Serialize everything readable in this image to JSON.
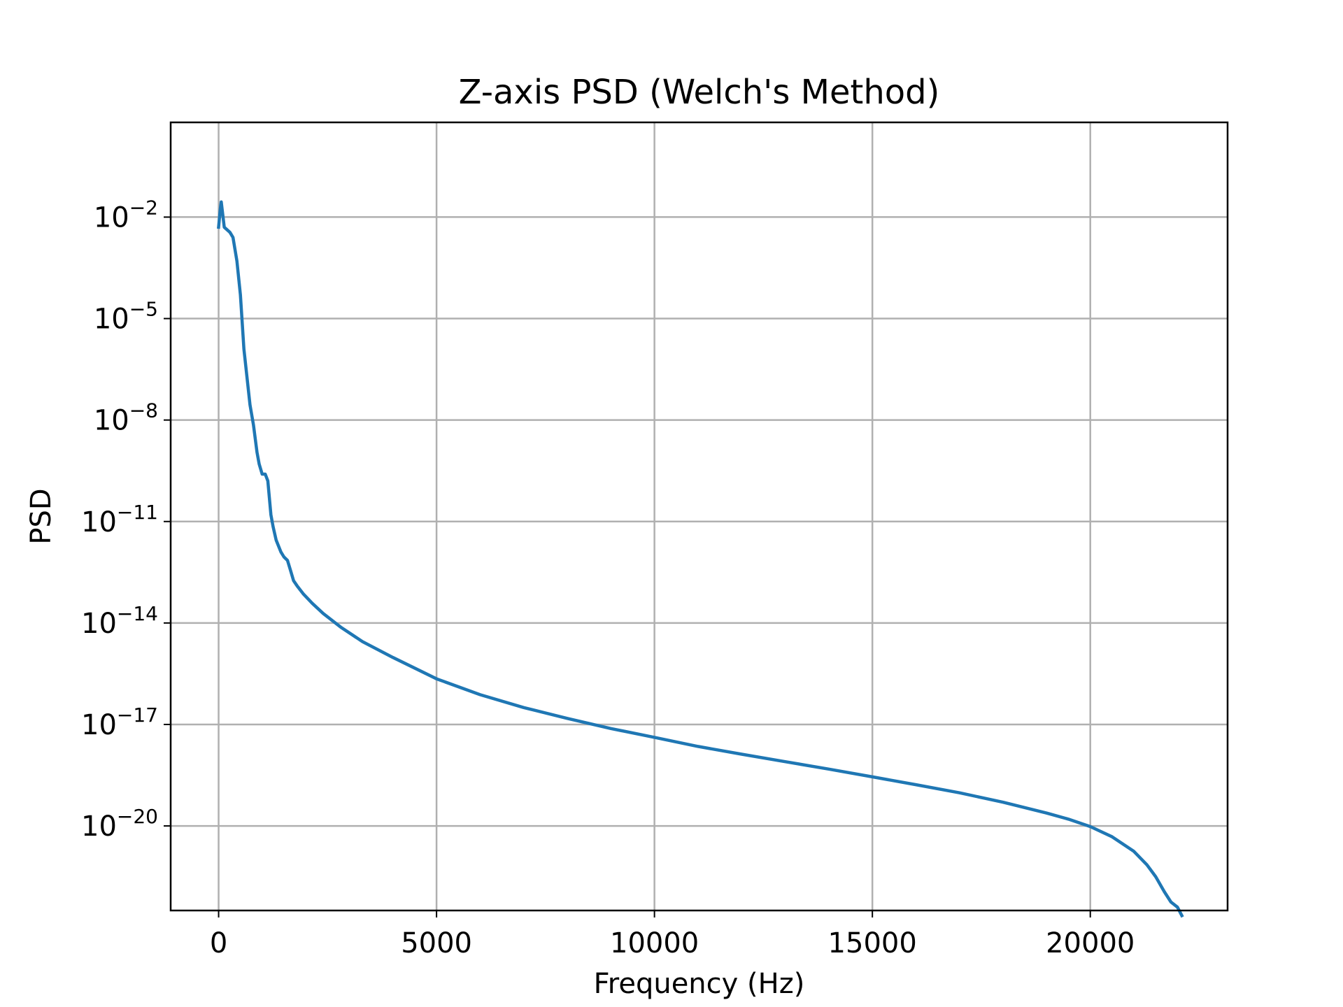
{
  "chart_data": {
    "type": "line",
    "title": "Z-axis PSD (Welch's Method)",
    "xlabel": "Frequency (Hz)",
    "ylabel": "PSD",
    "xlim": [
      -1100,
      23150
    ],
    "ylim_log10": [
      -22.5,
      0.8
    ],
    "y_scale": "log",
    "grid": true,
    "x_ticks": [
      {
        "value": 0,
        "label": "0"
      },
      {
        "value": 5000,
        "label": "5000"
      },
      {
        "value": 10000,
        "label": "10000"
      },
      {
        "value": 15000,
        "label": "15000"
      },
      {
        "value": 20000,
        "label": "20000"
      }
    ],
    "y_ticks": [
      {
        "exp": -2,
        "base": "10",
        "sup": "−2"
      },
      {
        "exp": -5,
        "base": "10",
        "sup": "−5"
      },
      {
        "exp": -8,
        "base": "10",
        "sup": "−8"
      },
      {
        "exp": -11,
        "base": "10",
        "sup": "−11"
      },
      {
        "exp": -14,
        "base": "10",
        "sup": "−14"
      },
      {
        "exp": -17,
        "base": "10",
        "sup": "−17"
      },
      {
        "exp": -20,
        "base": "10",
        "sup": "−20"
      }
    ],
    "series": [
      {
        "color": "#1f77b4",
        "x": [
          0,
          40,
          60,
          130,
          260,
          330,
          420,
          500,
          580,
          720,
          800,
          880,
          930,
          1000,
          1070,
          1130,
          1200,
          1250,
          1320,
          1430,
          1500,
          1580,
          1650,
          1720,
          1800,
          1950,
          2150,
          2400,
          2800,
          3300,
          4000,
          5000,
          6000,
          7000,
          8000,
          9000,
          10000,
          11000,
          12000,
          13000,
          14000,
          15000,
          16000,
          17000,
          18000,
          19000,
          19500,
          20000,
          20500,
          21000,
          21300,
          21500,
          21700,
          21850,
          22000,
          22100
        ],
        "log10_psd": [
          -2.3,
          -1.75,
          -1.55,
          -2.3,
          -2.45,
          -2.6,
          -3.3,
          -4.3,
          -5.9,
          -7.55,
          -8.15,
          -8.95,
          -9.3,
          -9.6,
          -9.6,
          -9.8,
          -10.8,
          -11.15,
          -11.55,
          -11.9,
          -12.05,
          -12.15,
          -12.45,
          -12.75,
          -12.9,
          -13.15,
          -13.42,
          -13.72,
          -14.12,
          -14.55,
          -15.02,
          -15.65,
          -16.12,
          -16.5,
          -16.82,
          -17.12,
          -17.38,
          -17.65,
          -17.88,
          -18.1,
          -18.32,
          -18.55,
          -18.78,
          -19.02,
          -19.3,
          -19.62,
          -19.8,
          -20.02,
          -20.32,
          -20.75,
          -21.15,
          -21.5,
          -21.95,
          -22.25,
          -22.4,
          -22.65
        ]
      }
    ]
  }
}
